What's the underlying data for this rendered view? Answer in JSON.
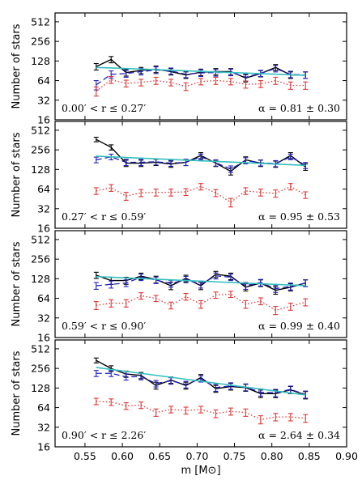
{
  "chart_data": [
    {
      "type": "line",
      "ylabel": "Number of stars",
      "yscale": "log2",
      "ylim": [
        16,
        700
      ],
      "xlim": [
        0.51,
        0.9
      ],
      "yticks": [
        "16",
        "32",
        "64",
        "128",
        "256",
        "512"
      ],
      "annotation_left": "0.00′ < r ≤ 0.27′",
      "annotation_right": "α = 0.81 ± 0.30",
      "x": [
        0.565,
        0.585,
        0.605,
        0.625,
        0.645,
        0.665,
        0.685,
        0.705,
        0.725,
        0.745,
        0.765,
        0.785,
        0.805,
        0.825,
        0.845
      ],
      "series": [
        {
          "style": "solid",
          "color": "#000000",
          "values": [
            105,
            135,
            85,
            92,
            96,
            88,
            78,
            86,
            88,
            88,
            70,
            82,
            102,
            78,
            78
          ],
          "err": [
            12,
            15,
            10,
            10,
            11,
            10,
            9,
            10,
            10,
            10,
            9,
            9,
            11,
            9,
            9
          ]
        },
        {
          "style": "dashed",
          "color": "#1f1fbf",
          "values": [
            55,
            80,
            82,
            88,
            93,
            90,
            80,
            84,
            85,
            86,
            72,
            83,
            98,
            80,
            78
          ],
          "err": [
            9,
            10,
            10,
            10,
            11,
            10,
            9,
            10,
            10,
            10,
            9,
            9,
            11,
            9,
            9
          ]
        },
        {
          "style": "dotted",
          "color": "#e53333",
          "values": [
            44,
            66,
            58,
            60,
            64,
            60,
            52,
            62,
            64,
            62,
            56,
            57,
            64,
            54,
            54
          ],
          "err": [
            7,
            8,
            7,
            7,
            8,
            7,
            7,
            7,
            8,
            7,
            7,
            7,
            8,
            7,
            7
          ]
        },
        {
          "style": "fit",
          "color": "#33bfbf",
          "endpoints": [
            [
              0.565,
              102
            ],
            [
              0.845,
              77
            ]
          ]
        }
      ]
    },
    {
      "type": "line",
      "ylabel": "Number of stars",
      "yscale": "log2",
      "ylim": [
        16,
        700
      ],
      "xlim": [
        0.51,
        0.9
      ],
      "yticks": [
        "16",
        "32",
        "64",
        "128",
        "256",
        "512"
      ],
      "annotation_left": "0.27′ < r ≤ 0.59′",
      "annotation_right": "α = 0.95 ± 0.53",
      "x": [
        0.565,
        0.585,
        0.605,
        0.625,
        0.645,
        0.665,
        0.685,
        0.705,
        0.725,
        0.745,
        0.765,
        0.785,
        0.805,
        0.825,
        0.845
      ],
      "series": [
        {
          "style": "solid",
          "color": "#000000",
          "values": [
            370,
            280,
            160,
            160,
            165,
            155,
            165,
            210,
            160,
            120,
            180,
            160,
            155,
            210,
            140
          ],
          "err": [
            30,
            26,
            18,
            18,
            18,
            17,
            18,
            22,
            18,
            15,
            20,
            18,
            17,
            22,
            16
          ]
        },
        {
          "style": "dashed",
          "color": "#1f1fbf",
          "values": [
            180,
            200,
            165,
            165,
            168,
            160,
            165,
            200,
            162,
            130,
            175,
            162,
            158,
            200,
            148
          ],
          "err": [
            18,
            20,
            18,
            18,
            18,
            17,
            18,
            20,
            18,
            15,
            19,
            17,
            17,
            20,
            16
          ]
        },
        {
          "style": "dotted",
          "color": "#e53333",
          "values": [
            60,
            67,
            50,
            56,
            57,
            57,
            58,
            70,
            56,
            40,
            60,
            57,
            55,
            70,
            52
          ],
          "err": [
            7,
            8,
            7,
            7,
            7,
            7,
            7,
            8,
            7,
            6,
            7,
            7,
            7,
            8,
            6
          ]
        },
        {
          "style": "fit",
          "color": "#33bfbf",
          "endpoints": [
            [
              0.565,
              205
            ],
            [
              0.845,
              148
            ]
          ]
        }
      ]
    },
    {
      "type": "line",
      "ylabel": "Number of stars",
      "yscale": "log2",
      "ylim": [
        16,
        700
      ],
      "xlim": [
        0.51,
        0.9
      ],
      "yticks": [
        "16",
        "32",
        "64",
        "128",
        "256",
        "512"
      ],
      "annotation_left": "0.59′ < r ≤ 0.90′",
      "annotation_right": "α = 0.99 ± 0.40",
      "x": [
        0.565,
        0.585,
        0.605,
        0.625,
        0.645,
        0.665,
        0.685,
        0.705,
        0.725,
        0.745,
        0.765,
        0.785,
        0.805,
        0.825,
        0.845
      ],
      "series": [
        {
          "style": "solid",
          "color": "#000000",
          "values": [
            145,
            120,
            120,
            140,
            125,
            100,
            130,
            100,
            150,
            140,
            95,
            110,
            85,
            95,
            110
          ],
          "err": [
            16,
            15,
            15,
            16,
            15,
            13,
            15,
            13,
            16,
            16,
            12,
            13,
            11,
            12,
            13
          ]
        },
        {
          "style": "dashed",
          "color": "#1f1fbf",
          "values": [
            100,
            105,
            110,
            135,
            122,
            108,
            125,
            105,
            142,
            135,
            100,
            112,
            90,
            98,
            110
          ],
          "err": [
            12,
            13,
            13,
            15,
            14,
            13,
            14,
            13,
            15,
            15,
            12,
            13,
            11,
            12,
            13
          ]
        },
        {
          "style": "dotted",
          "color": "#e53333",
          "values": [
            50,
            54,
            54,
            70,
            64,
            50,
            68,
            52,
            72,
            74,
            52,
            58,
            42,
            48,
            56
          ],
          "err": [
            7,
            7,
            7,
            8,
            7,
            6,
            8,
            7,
            8,
            8,
            7,
            7,
            6,
            6,
            7
          ]
        },
        {
          "style": "fit",
          "color": "#33bfbf",
          "endpoints": [
            [
              0.565,
              138
            ],
            [
              0.845,
              100
            ]
          ]
        }
      ]
    },
    {
      "type": "line",
      "ylabel": "Number of stars",
      "yscale": "log2",
      "ylim": [
        16,
        700
      ],
      "xlim": [
        0.51,
        0.9
      ],
      "yticks": [
        "16",
        "32",
        "64",
        "128",
        "256",
        "512"
      ],
      "xticks": [
        "0.55",
        "0.60",
        "0.65",
        "0.70",
        "0.75",
        "0.80",
        "0.85",
        "0.90"
      ],
      "xlabel": "m [M⊙]",
      "annotation_left": "0.90′ < r ≤ 2.26′",
      "annotation_right": "α = 2.64 ± 0.34",
      "x": [
        0.565,
        0.585,
        0.605,
        0.625,
        0.645,
        0.665,
        0.685,
        0.705,
        0.725,
        0.745,
        0.765,
        0.785,
        0.805,
        0.825,
        0.845
      ],
      "series": [
        {
          "style": "solid",
          "color": "#000000",
          "values": [
            340,
            255,
            210,
            200,
            140,
            170,
            140,
            185,
            125,
            135,
            130,
            105,
            105,
            120,
            100
          ],
          "err": [
            30,
            26,
            23,
            22,
            17,
            19,
            17,
            21,
            15,
            16,
            16,
            14,
            14,
            15,
            13
          ]
        },
        {
          "style": "dashed",
          "color": "#1f1fbf",
          "values": [
            215,
            215,
            190,
            192,
            150,
            165,
            145,
            178,
            130,
            138,
            132,
            110,
            108,
            122,
            102
          ],
          "err": [
            23,
            23,
            21,
            21,
            17,
            19,
            17,
            20,
            16,
            16,
            16,
            14,
            14,
            15,
            13
          ]
        },
        {
          "style": "dotted",
          "color": "#e53333",
          "values": [
            80,
            78,
            68,
            70,
            54,
            60,
            58,
            60,
            52,
            56,
            54,
            42,
            46,
            46,
            44
          ],
          "err": [
            9,
            9,
            8,
            8,
            7,
            7,
            7,
            7,
            7,
            7,
            7,
            6,
            6,
            6,
            6
          ]
        },
        {
          "style": "fit",
          "color": "#33bfbf",
          "endpoints": [
            [
              0.565,
              265
            ],
            [
              0.845,
              100
            ]
          ]
        }
      ]
    }
  ]
}
